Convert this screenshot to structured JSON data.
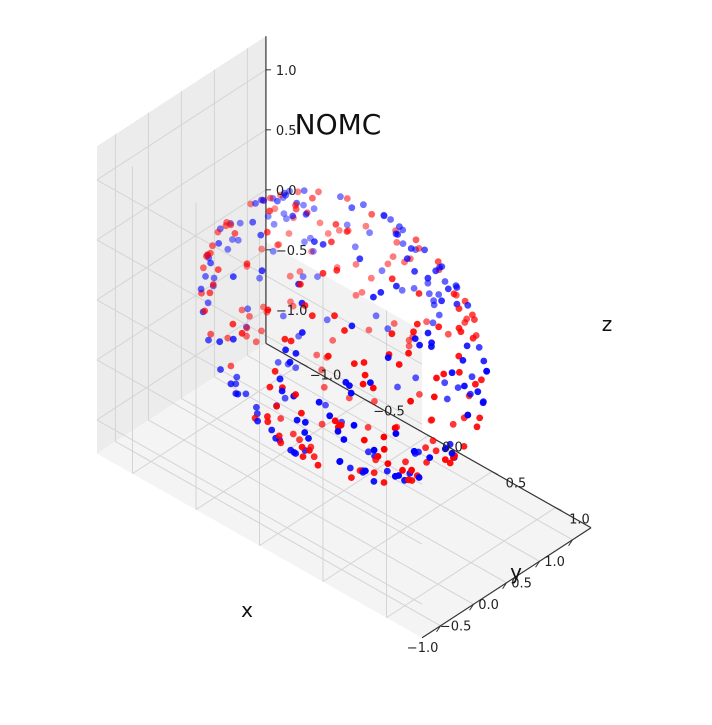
{
  "chart_data": {
    "type": "scatter",
    "projection": "3d",
    "title": "NOMC",
    "xlabel": "x",
    "ylabel": "y",
    "zlabel": "z",
    "xlim": [
      -1.0,
      1.0
    ],
    "ylim": [
      -1.0,
      1.0
    ],
    "zlim": [
      -1.0,
      1.0
    ],
    "x_ticks": [
      "−1.0",
      "−0.5",
      "0.0",
      "0.5",
      "1.0"
    ],
    "y_ticks": [
      "−1.0",
      "−0.5",
      "0.0",
      "0.5",
      "1.0"
    ],
    "z_ticks": [
      "−1.0",
      "−0.5",
      "0.0",
      "0.5",
      "1.0"
    ],
    "grid": true,
    "pane_color": "#f2f2f2",
    "series": [
      {
        "color": "#ff0000",
        "count": 200,
        "distribution": "points on unit sphere"
      },
      {
        "color": "#0000ff",
        "count": 200,
        "distribution": "points on unit sphere"
      }
    ]
  }
}
